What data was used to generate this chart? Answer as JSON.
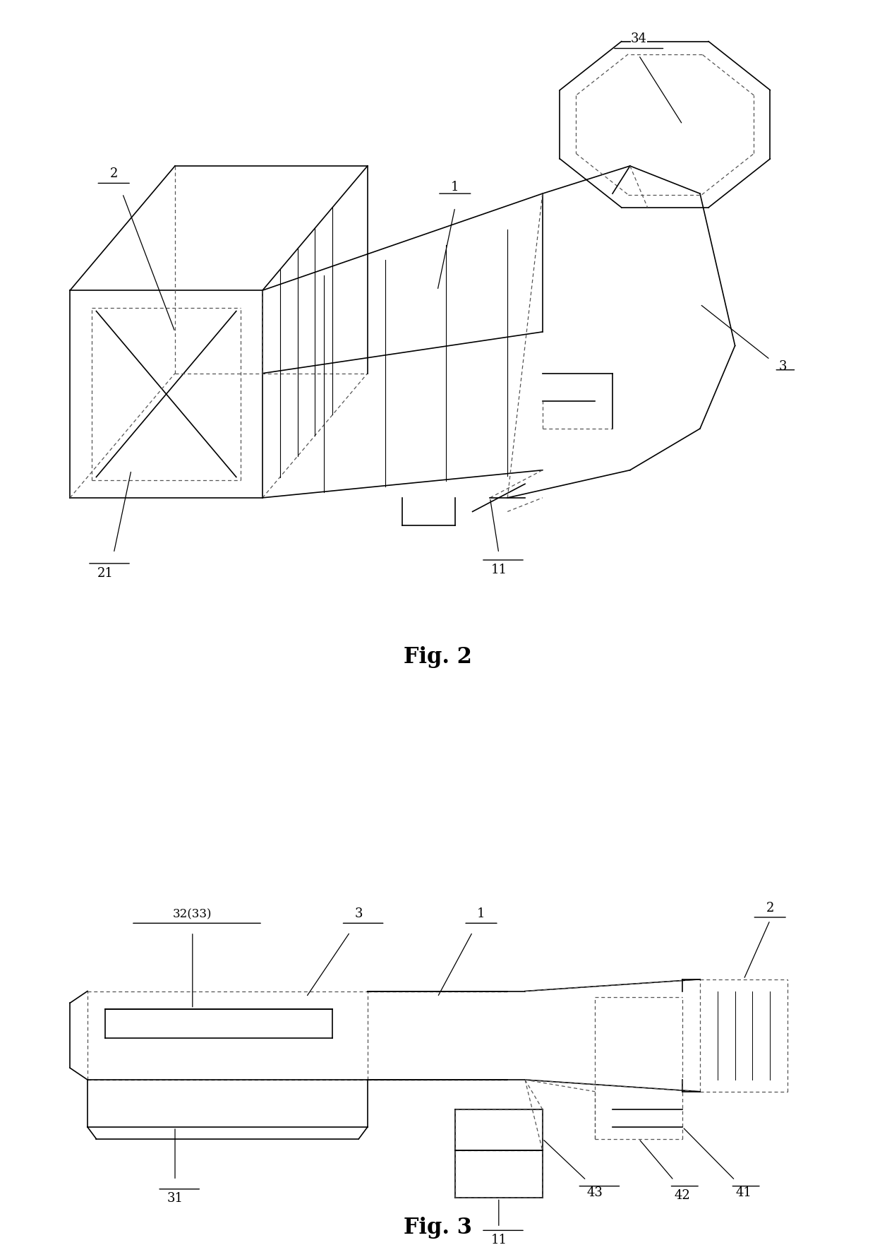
{
  "fig_width": 12.4,
  "fig_height": 17.8,
  "background_color": "#ffffff",
  "line_color": "#000000",
  "dashed_color": "#555555",
  "fig2_title": "Fig. 2",
  "fig3_title": "Fig. 3",
  "fig2_title_fontsize": 22,
  "fig3_title_fontsize": 22,
  "annotation_fontsize": 13
}
